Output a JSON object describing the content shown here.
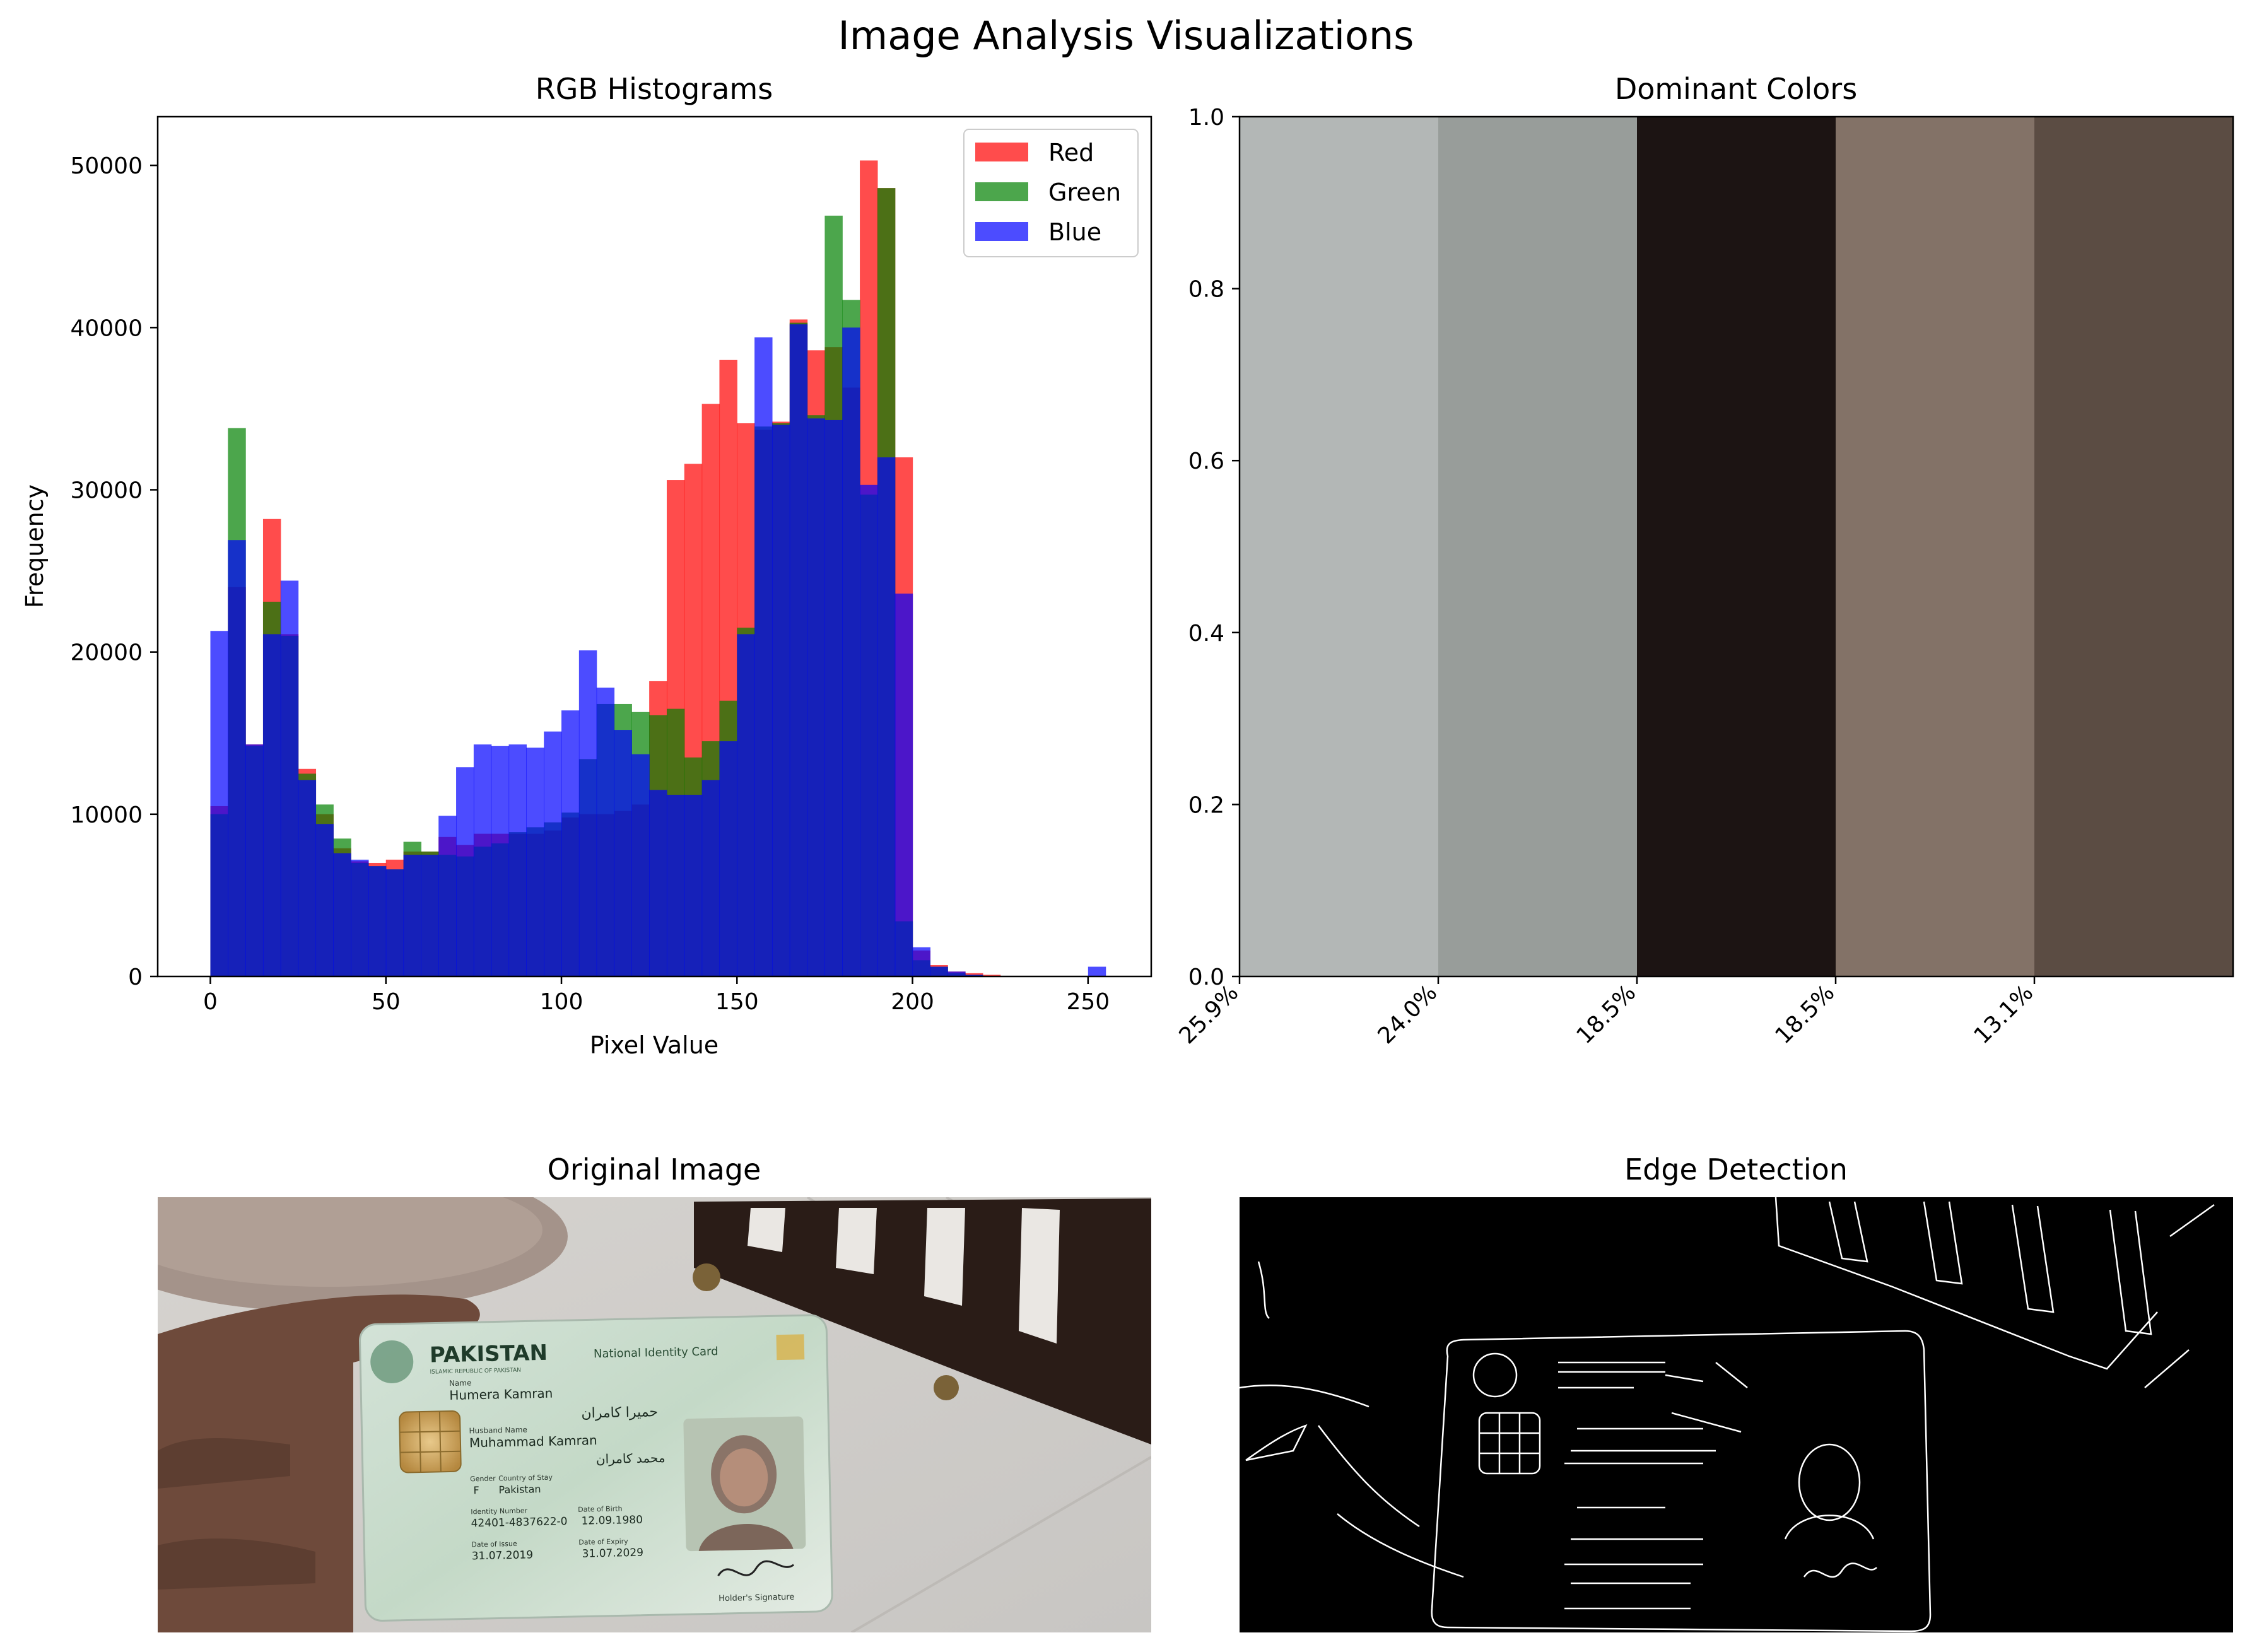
{
  "figure": {
    "suptitle": "Image Analysis Visualizations"
  },
  "chart_data": [
    {
      "type": "bar",
      "subtype": "histogram",
      "title": "RGB Histograms",
      "xlabel": "Pixel Value",
      "ylabel": "Frequency",
      "xlim": [
        -15,
        268
      ],
      "ylim": [
        0,
        53000
      ],
      "xticks": [
        0,
        50,
        100,
        150,
        200,
        250
      ],
      "yticks": [
        0,
        10000,
        20000,
        30000,
        40000,
        50000
      ],
      "legend": "top-right",
      "bin_width": 5,
      "bins_start": [
        0,
        5,
        10,
        15,
        20,
        25,
        30,
        35,
        40,
        45,
        50,
        55,
        60,
        65,
        70,
        75,
        80,
        85,
        90,
        95,
        100,
        105,
        110,
        115,
        120,
        125,
        130,
        135,
        140,
        145,
        150,
        155,
        160,
        165,
        170,
        175,
        180,
        185,
        190,
        195,
        200,
        205,
        210,
        215,
        220,
        225,
        230,
        235,
        240,
        245,
        250
      ],
      "series": [
        {
          "name": "Red",
          "color": "#ff0000",
          "alpha": 0.7,
          "values": [
            10500,
            24000,
            14300,
            28200,
            21100,
            12800,
            10000,
            7900,
            7100,
            7000,
            7200,
            7700,
            7700,
            8600,
            8100,
            8800,
            8800,
            8800,
            8800,
            9000,
            9800,
            10000,
            10000,
            10200,
            10600,
            18200,
            30600,
            31600,
            35300,
            38000,
            34100,
            33700,
            34200,
            40500,
            38600,
            38800,
            36300,
            50300,
            48600,
            32000,
            1600,
            700,
            300,
            200,
            100,
            0,
            0,
            0,
            0,
            0,
            0
          ]
        },
        {
          "name": "Green",
          "color": "#008000",
          "alpha": 0.7,
          "values": [
            10000,
            33800,
            14200,
            23100,
            21000,
            12500,
            10600,
            8500,
            7000,
            6800,
            6600,
            8300,
            7700,
            7500,
            7400,
            8000,
            8200,
            8900,
            9200,
            9500,
            10100,
            13400,
            16800,
            16800,
            16300,
            16100,
            16500,
            13500,
            14500,
            17000,
            21500,
            33900,
            34100,
            40300,
            34600,
            46900,
            41700,
            29700,
            48600,
            3400,
            1000,
            600,
            200,
            100,
            0,
            0,
            0,
            0,
            0,
            0,
            0
          ]
        },
        {
          "name": "Blue",
          "color": "#0000ff",
          "alpha": 0.7,
          "values": [
            21300,
            26900,
            14300,
            21100,
            24400,
            12100,
            9400,
            7600,
            7200,
            6800,
            6600,
            7500,
            7500,
            9900,
            12900,
            14300,
            14200,
            14300,
            14100,
            15100,
            16400,
            20100,
            17800,
            15200,
            13700,
            11500,
            11200,
            11200,
            12100,
            14500,
            21100,
            39400,
            34000,
            40200,
            34400,
            34300,
            40000,
            30300,
            32000,
            23600,
            1800,
            600,
            300,
            100,
            0,
            0,
            0,
            0,
            0,
            0,
            600
          ]
        }
      ]
    },
    {
      "type": "bar",
      "title": "Dominant Colors",
      "ylim": [
        0,
        1.0
      ],
      "yticks": [
        0.0,
        0.2,
        0.4,
        0.6,
        0.8,
        1.0
      ],
      "ytick_labels": [
        "0.0",
        "0.2",
        "0.4",
        "0.6",
        "0.8",
        "1.0"
      ],
      "categories": [
        "25.9%",
        "24.0%",
        "18.5%",
        "18.5%",
        "13.1%"
      ],
      "values": [
        1.0,
        1.0,
        1.0,
        1.0,
        1.0
      ],
      "colors": [
        "#b3b7b6",
        "#989d9a",
        "#1c1413",
        "#837267",
        "#5b4c43"
      ]
    }
  ],
  "panels": {
    "original": {
      "title": "Original Image"
    },
    "edges": {
      "title": "Edge Detection"
    }
  },
  "card": {
    "country": "PAKISTAN",
    "doc_type": "National Identity Card",
    "state_line": "ISLAMIC REPUBLIC OF PAKISTAN",
    "name_label": "Name",
    "name": "Humera Kamran",
    "name_urdu": "حمیرا کامران",
    "husband_label": "Husband Name",
    "husband": "Muhammad Kamran",
    "husband_urdu": "محمد کامران",
    "gender_label": "Gender",
    "gender": "F",
    "country_stay_label": "Country of Stay",
    "country_stay": "Pakistan",
    "id_label": "Identity Number",
    "id": "42401-4837622-0",
    "dob_label": "Date of Birth",
    "dob": "12.09.1980",
    "issue_label": "Date of Issue",
    "issue": "31.07.2019",
    "expiry_label": "Date of Expiry",
    "expiry": "31.07.2029",
    "signature_label": "Holder's Signature"
  }
}
